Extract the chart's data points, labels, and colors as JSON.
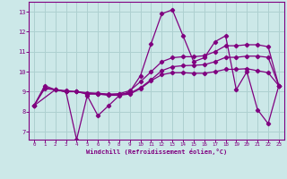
{
  "xlabel": "Windchill (Refroidissement éolien,°C)",
  "xlim": [
    -0.5,
    23.5
  ],
  "ylim": [
    6.6,
    13.5
  ],
  "yticks": [
    7,
    8,
    9,
    10,
    11,
    12,
    13
  ],
  "xticks": [
    0,
    1,
    2,
    3,
    4,
    5,
    6,
    7,
    8,
    9,
    10,
    11,
    12,
    13,
    14,
    15,
    16,
    17,
    18,
    19,
    20,
    21,
    22,
    23
  ],
  "background_color": "#cce8e8",
  "grid_color": "#aed0d0",
  "line_color": "#800080",
  "lines": [
    {
      "x": [
        0,
        1,
        2,
        3,
        4,
        5,
        6,
        7,
        8,
        9,
        10,
        11,
        12,
        13,
        14,
        15,
        16,
        17,
        18,
        19,
        20,
        21,
        22,
        23
      ],
      "y": [
        8.3,
        9.3,
        9.1,
        9.0,
        6.6,
        8.8,
        7.8,
        8.3,
        8.8,
        9.0,
        9.8,
        11.4,
        12.9,
        13.1,
        11.8,
        10.5,
        10.7,
        11.5,
        11.8,
        9.1,
        10.0,
        8.1,
        7.4,
        9.3
      ]
    },
    {
      "x": [
        0,
        1,
        2,
        3,
        4,
        5,
        6,
        7,
        8,
        9,
        10,
        11,
        12,
        13,
        14,
        15,
        16,
        17,
        18,
        19,
        20,
        21,
        22,
        23
      ],
      "y": [
        8.3,
        9.2,
        9.1,
        9.0,
        9.0,
        8.9,
        8.9,
        8.85,
        8.9,
        9.05,
        9.5,
        10.0,
        10.5,
        10.7,
        10.75,
        10.75,
        10.8,
        11.0,
        11.3,
        11.3,
        11.35,
        11.35,
        11.25,
        9.3
      ]
    },
    {
      "x": [
        0,
        1,
        2,
        3,
        4,
        5,
        6,
        7,
        8,
        9,
        10,
        11,
        12,
        13,
        14,
        15,
        16,
        17,
        18,
        19,
        20,
        21,
        22,
        23
      ],
      "y": [
        8.3,
        9.15,
        9.1,
        9.0,
        9.0,
        8.88,
        8.88,
        8.82,
        8.82,
        8.88,
        9.15,
        9.55,
        9.85,
        9.95,
        9.95,
        9.92,
        9.92,
        10.0,
        10.12,
        10.12,
        10.15,
        10.05,
        9.95,
        9.3
      ]
    },
    {
      "x": [
        0,
        2,
        3,
        4,
        5,
        6,
        7,
        8,
        9,
        10,
        11,
        12,
        13,
        14,
        15,
        16,
        17,
        18,
        19,
        20,
        21,
        22,
        23
      ],
      "y": [
        8.3,
        9.1,
        9.05,
        9.0,
        8.95,
        8.92,
        8.88,
        8.88,
        8.92,
        9.2,
        9.6,
        10.05,
        10.25,
        10.3,
        10.32,
        10.35,
        10.5,
        10.72,
        10.72,
        10.78,
        10.78,
        10.72,
        9.3
      ]
    }
  ]
}
